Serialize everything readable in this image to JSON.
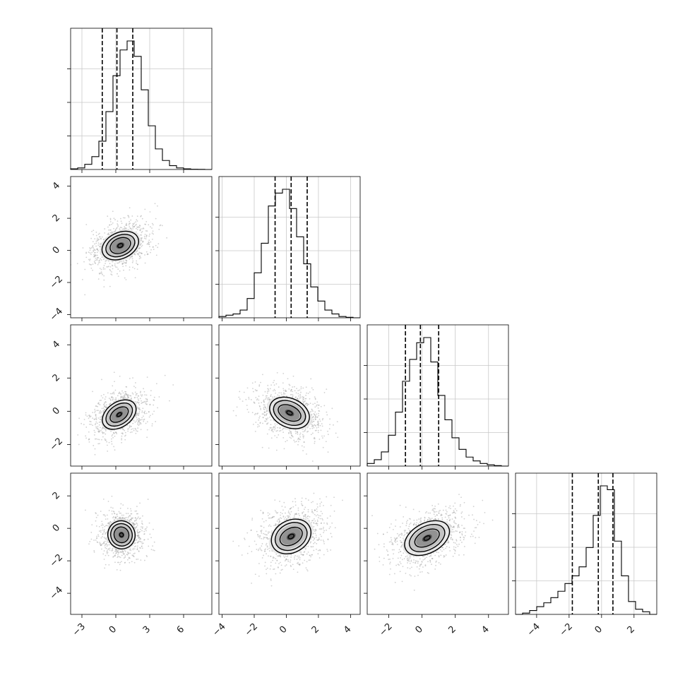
{
  "chart_data": {
    "type": "corner",
    "title": "",
    "n_params": 4,
    "grid": true,
    "colors": {
      "mark": "#000000",
      "grid": "#c8c8c8",
      "points": "#9a9a9a"
    },
    "params": [
      {
        "xlim": [
          -4,
          8.5
        ],
        "mean": 0.2,
        "sd": 1.3,
        "quantiles": [
          -1.2,
          0.1,
          1.5
        ],
        "xticks": [
          -3,
          0,
          3,
          6
        ],
        "xticklabels": [
          "−3",
          "0",
          "3",
          "6"
        ],
        "yticks": [],
        "yticklabels": [],
        "hist": [
          0.005,
          0.012,
          0.04,
          0.1,
          0.22,
          0.45,
          0.73,
          0.93,
          1.0,
          0.88,
          0.62,
          0.34,
          0.16,
          0.07,
          0.03,
          0.012,
          0.005,
          0.002,
          0.001,
          0.0
        ]
      },
      {
        "xlim": [
          -4.2,
          4.6
        ],
        "mean": 0.3,
        "sd": 1.0,
        "quantiles": [
          -0.7,
          0.3,
          1.3
        ],
        "xticks": [
          -4,
          -2,
          0,
          2,
          4
        ],
        "xticklabels": [
          "−4",
          "−2",
          "0",
          "2",
          "4"
        ],
        "yticks": [
          -4,
          -2,
          0,
          2,
          4
        ],
        "yticklabels": [
          "−4",
          "−2",
          "0",
          "2",
          "4"
        ],
        "hist": [
          0.01,
          0.02,
          0.03,
          0.06,
          0.15,
          0.35,
          0.58,
          0.87,
          0.97,
          1.0,
          0.85,
          0.63,
          0.42,
          0.24,
          0.13,
          0.06,
          0.03,
          0.01,
          0.004,
          0.0
        ]
      },
      {
        "xlim": [
          -3.3,
          5.2
        ],
        "mean": -0.05,
        "sd": 0.95,
        "quantiles": [
          -1.0,
          -0.1,
          1.0
        ],
        "xticks": [
          -2,
          0,
          2,
          4
        ],
        "xticklabels": [
          "−2",
          "0",
          "2",
          "4"
        ],
        "yticks": [
          -2,
          0,
          2,
          4
        ],
        "yticklabels": [
          "−2",
          "0",
          "2",
          "4"
        ],
        "hist": [
          0.02,
          0.05,
          0.11,
          0.24,
          0.42,
          0.66,
          0.83,
          0.96,
          1.0,
          0.81,
          0.55,
          0.36,
          0.22,
          0.13,
          0.07,
          0.04,
          0.02,
          0.01,
          0.004,
          0.0
        ]
      },
      {
        "xlim": [
          -5.3,
          3.4
        ],
        "mean": -0.3,
        "sd": 1.2,
        "quantiles": [
          -1.8,
          -0.2,
          0.7
        ],
        "xticks": [
          -4,
          -2,
          0,
          2
        ],
        "xticklabels": [
          "−4",
          "−2",
          "0",
          "2"
        ],
        "yticks": [
          -4,
          -2,
          0,
          2
        ],
        "yticklabels": [
          "−4",
          "−2",
          "0",
          "2"
        ],
        "hist": [
          0.0,
          0.01,
          0.03,
          0.06,
          0.09,
          0.13,
          0.18,
          0.24,
          0.3,
          0.37,
          0.52,
          0.77,
          1.0,
          0.97,
          0.57,
          0.3,
          0.1,
          0.04,
          0.02,
          0.0
        ]
      }
    ],
    "pairs": [
      {
        "x": 0,
        "y": 1,
        "center": [
          0.4,
          0.3
        ],
        "rx": [
          1.9,
          2.7,
          3.4
        ],
        "ry": [
          1.3,
          1.8,
          2.3
        ],
        "rot": -25
      },
      {
        "x": 0,
        "y": 2,
        "center": [
          0.3,
          -0.2
        ],
        "rx": [
          1.8,
          2.6,
          3.3
        ],
        "ry": [
          1.1,
          1.7,
          2.2
        ],
        "rot": -35
      },
      {
        "x": 1,
        "y": 2,
        "center": [
          0.2,
          -0.1
        ],
        "rx": [
          1.5,
          2.1,
          2.6
        ],
        "ry": [
          0.9,
          1.4,
          1.8
        ],
        "rot": 25
      },
      {
        "x": 0,
        "y": 3,
        "center": [
          0.5,
          -0.4
        ],
        "rx": [
          1.4,
          2.0,
          2.5
        ],
        "ry": [
          1.3,
          1.9,
          2.4
        ],
        "rot": 70
      },
      {
        "x": 1,
        "y": 3,
        "center": [
          0.3,
          -0.5
        ],
        "rx": [
          1.5,
          2.1,
          2.6
        ],
        "ry": [
          1.0,
          1.6,
          2.0
        ],
        "rot": -30
      },
      {
        "x": 2,
        "y": 3,
        "center": [
          0.3,
          -0.6
        ],
        "rx": [
          1.6,
          2.3,
          2.9
        ],
        "ry": [
          0.9,
          1.4,
          1.8
        ],
        "rot": -28
      }
    ]
  }
}
